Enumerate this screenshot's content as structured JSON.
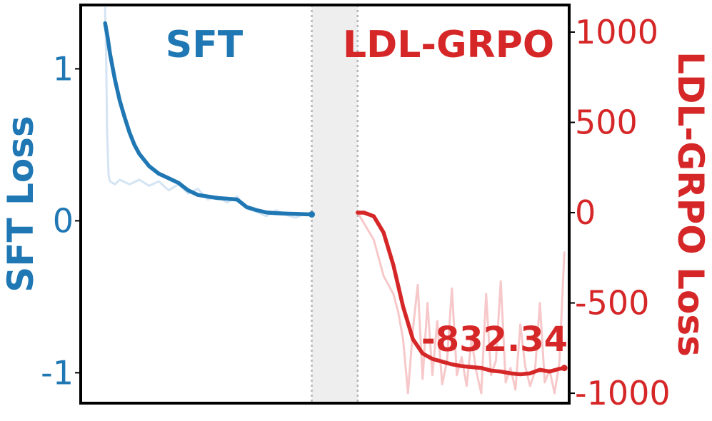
{
  "colors": {
    "sft": "#1f77b4",
    "sft_raw": "#c6dbef",
    "grpo": "#d62728",
    "grpo_raw": "#f4b6b8",
    "gap_fill": "#eeeeee",
    "frame": "#000000",
    "divider": "#b5b5b5"
  },
  "chart_data": {
    "type": "line",
    "panels": {
      "sft_title": "SFT",
      "grpo_title": "LDL-GRPO"
    },
    "left_axis": {
      "label": "SFT Loss",
      "ticks": [
        "1",
        "0",
        "-1"
      ],
      "tick_values": [
        1,
        0,
        -1
      ],
      "ylim": [
        -1.2,
        1.42
      ]
    },
    "right_axis": {
      "label": "LDL-GRPO Loss",
      "ticks": [
        "1000",
        "500",
        "0",
        "-500",
        "-1000"
      ],
      "tick_values": [
        1000,
        500,
        0,
        -500,
        -1000
      ],
      "ylim": [
        -1055,
        1150
      ]
    },
    "x_range": [
      0,
      100
    ],
    "gap": [
      47.3,
      56.7
    ],
    "series": [
      {
        "name": "SFT",
        "axis": "left",
        "role": "smoothed",
        "x": [
          5,
          5.5,
          6,
          7,
          8,
          9,
          10,
          11,
          12,
          14,
          16,
          18,
          20,
          22,
          24,
          26,
          28,
          30,
          32,
          34,
          36,
          38,
          40,
          42,
          44,
          46,
          47.3
        ],
        "y": [
          1.3,
          1.21,
          1.1,
          0.93,
          0.79,
          0.68,
          0.58,
          0.5,
          0.44,
          0.36,
          0.31,
          0.28,
          0.25,
          0.2,
          0.17,
          0.16,
          0.15,
          0.145,
          0.14,
          0.09,
          0.07,
          0.055,
          0.05,
          0.047,
          0.045,
          0.043,
          0.042
        ]
      },
      {
        "name": "SFT",
        "axis": "left",
        "role": "raw",
        "x": [
          5,
          5.2,
          5.4,
          5.7,
          6,
          7,
          8,
          10,
          12,
          14,
          16,
          18,
          20,
          22,
          24,
          26,
          28,
          30,
          32,
          34,
          36,
          38,
          40,
          42,
          44,
          46,
          47
        ],
        "y": [
          1.4,
          1.1,
          0.6,
          0.3,
          0.26,
          0.24,
          0.27,
          0.24,
          0.27,
          0.23,
          0.26,
          0.2,
          0.24,
          0.18,
          0.21,
          0.14,
          0.16,
          0.12,
          0.16,
          0.08,
          0.06,
          0.03,
          0.07,
          0.04,
          0.02,
          0.05,
          0.04
        ]
      },
      {
        "name": "LDL-GRPO",
        "axis": "right",
        "role": "smoothed",
        "x": [
          56.7,
          58,
          60,
          62,
          64,
          66,
          68,
          70,
          72,
          74,
          76,
          78,
          80,
          82,
          84,
          86,
          88,
          90,
          92,
          94,
          96,
          98,
          99
        ],
        "y": [
          0,
          0,
          -20,
          -110,
          -290,
          -520,
          -700,
          -780,
          -810,
          -825,
          -840,
          -850,
          -855,
          -860,
          -875,
          -880,
          -890,
          -895,
          -890,
          -870,
          -880,
          -865,
          -860
        ]
      },
      {
        "name": "LDL-GRPO",
        "axis": "right",
        "role": "raw",
        "x": [
          56.7,
          60,
          62,
          64,
          65,
          66,
          67,
          68,
          69,
          70,
          71,
          72,
          73,
          74,
          75,
          76,
          77,
          78,
          79,
          80,
          81,
          82,
          83,
          84,
          85,
          86,
          87,
          88,
          89,
          90,
          91,
          92,
          93,
          94,
          95,
          96,
          97,
          98,
          99
        ],
        "y": [
          0,
          -150,
          -350,
          -450,
          -550,
          -700,
          -1000,
          -650,
          -400,
          -920,
          -500,
          -900,
          -600,
          -950,
          -820,
          -420,
          -900,
          -800,
          -960,
          -700,
          -880,
          -1000,
          -450,
          -900,
          -820,
          -380,
          -940,
          -860,
          -980,
          -620,
          -850,
          -960,
          -880,
          -500,
          -940,
          -870,
          -1000,
          -830,
          -220
        ]
      }
    ],
    "annotations": [
      {
        "text": "-832.34",
        "axis": "right"
      }
    ],
    "grid": false,
    "legend": "none"
  }
}
